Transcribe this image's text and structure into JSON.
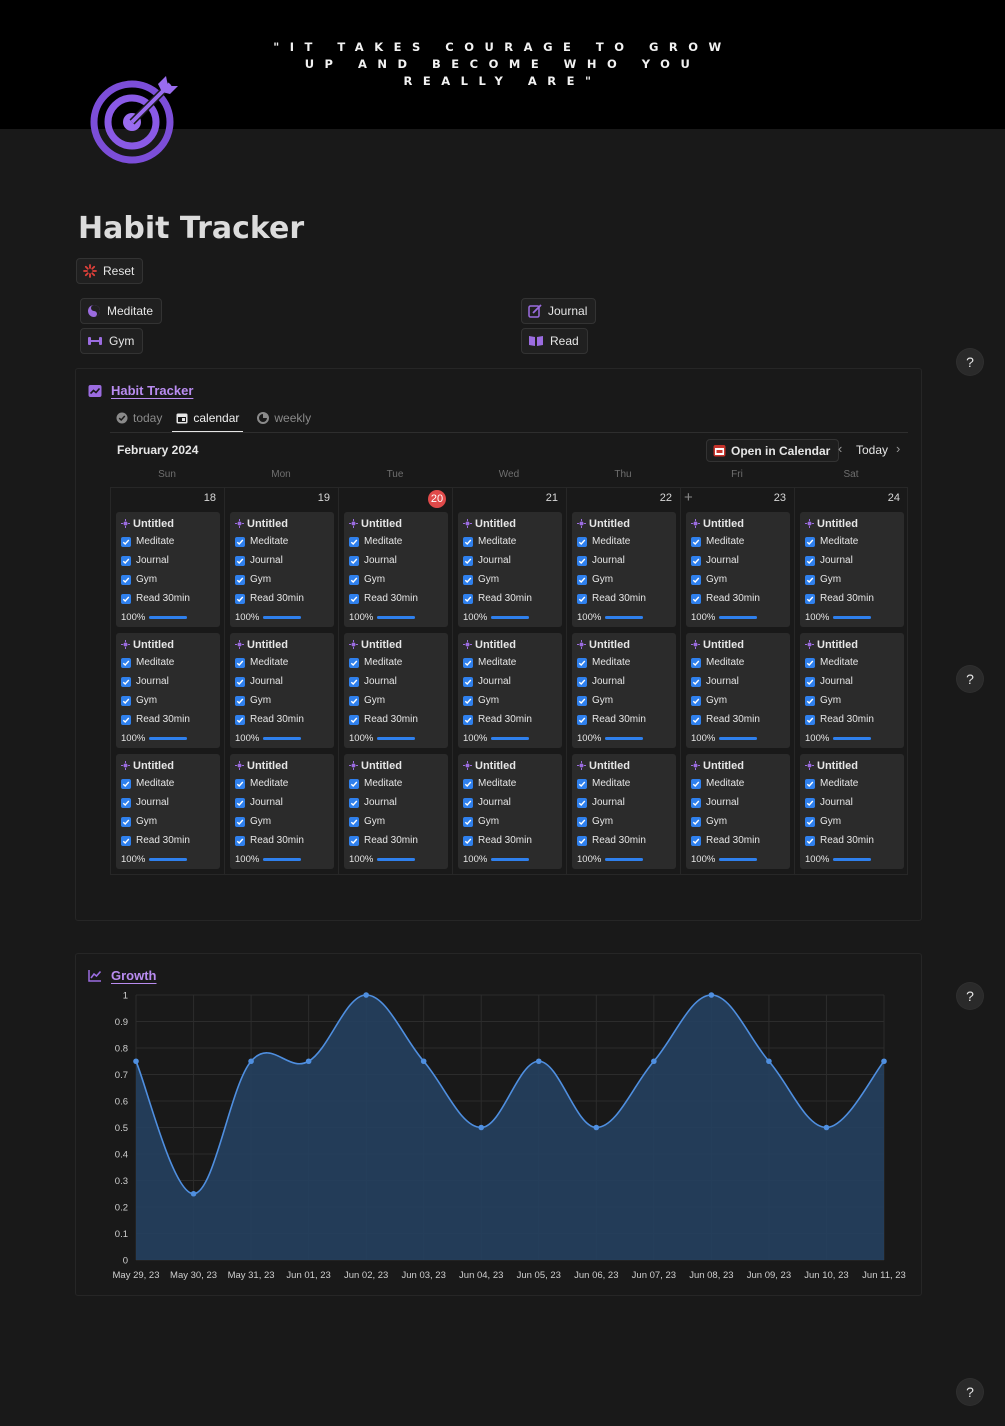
{
  "cover": {
    "quote": "\"IT TAKES COURAGE TO GROW UP AND BECOME WHO YOU REALLY ARE\""
  },
  "page": {
    "title": "Habit Tracker",
    "icon": "target-arrow-icon"
  },
  "buttons": {
    "reset": "Reset",
    "meditate": "Meditate",
    "gym": "Gym",
    "journal": "Journal",
    "read": "Read"
  },
  "help": "?",
  "tracker": {
    "db_title": "Habit Tracker",
    "tabs": [
      {
        "label": "today",
        "icon": "check-circle-icon"
      },
      {
        "label": "calendar",
        "icon": "calendar-icon"
      },
      {
        "label": "weekly",
        "icon": "pie-icon"
      }
    ],
    "month": "February 2024",
    "open_calendar": "Open in Calendar",
    "today_label": "Today",
    "prev": "‹",
    "next": "›",
    "add": "+",
    "weekdays": [
      "Sun",
      "Mon",
      "Tue",
      "Wed",
      "Thu",
      "Fri",
      "Sat"
    ],
    "dates": [
      "18",
      "19",
      "20",
      "21",
      "22",
      "23",
      "24"
    ],
    "current_date_index": 2,
    "card": {
      "title": "Untitled",
      "habits": [
        "Meditate",
        "Journal",
        "Gym",
        "Read 30min"
      ],
      "progress_label": "100%",
      "progress": 1.0
    },
    "cards_per_day": 3
  },
  "growth": {
    "db_title": "Growth"
  },
  "colors": {
    "accent": "#9b6ce0",
    "checkbox": "#2f80ed",
    "today_badge": "#e04a4a",
    "chart_line": "#4f8fe0",
    "chart_fill": "#25405f"
  },
  "chart_data": {
    "type": "area",
    "title": "",
    "xlabel": "",
    "ylabel": "",
    "x": [
      "May 29, 23",
      "May 30, 23",
      "May 31, 23",
      "Jun 01, 23",
      "Jun 02, 23",
      "Jun 03, 23",
      "Jun 04, 23",
      "Jun 05, 23",
      "Jun 06, 23",
      "Jun 07, 23",
      "Jun 08, 23",
      "Jun 09, 23",
      "Jun 10, 23",
      "Jun 11, 23"
    ],
    "values": [
      0.75,
      0.25,
      0.75,
      0.75,
      1,
      0.75,
      0.5,
      0.75,
      0.5,
      0.75,
      1,
      0.75,
      0.5,
      0.75
    ],
    "ylim": [
      0,
      1
    ],
    "yticks": [
      "0",
      "0.1",
      "0.2",
      "0.3",
      "0.4",
      "0.5",
      "0.6",
      "0.7",
      "0.8",
      "0.9",
      "1"
    ],
    "grid": true,
    "legend": "none"
  }
}
